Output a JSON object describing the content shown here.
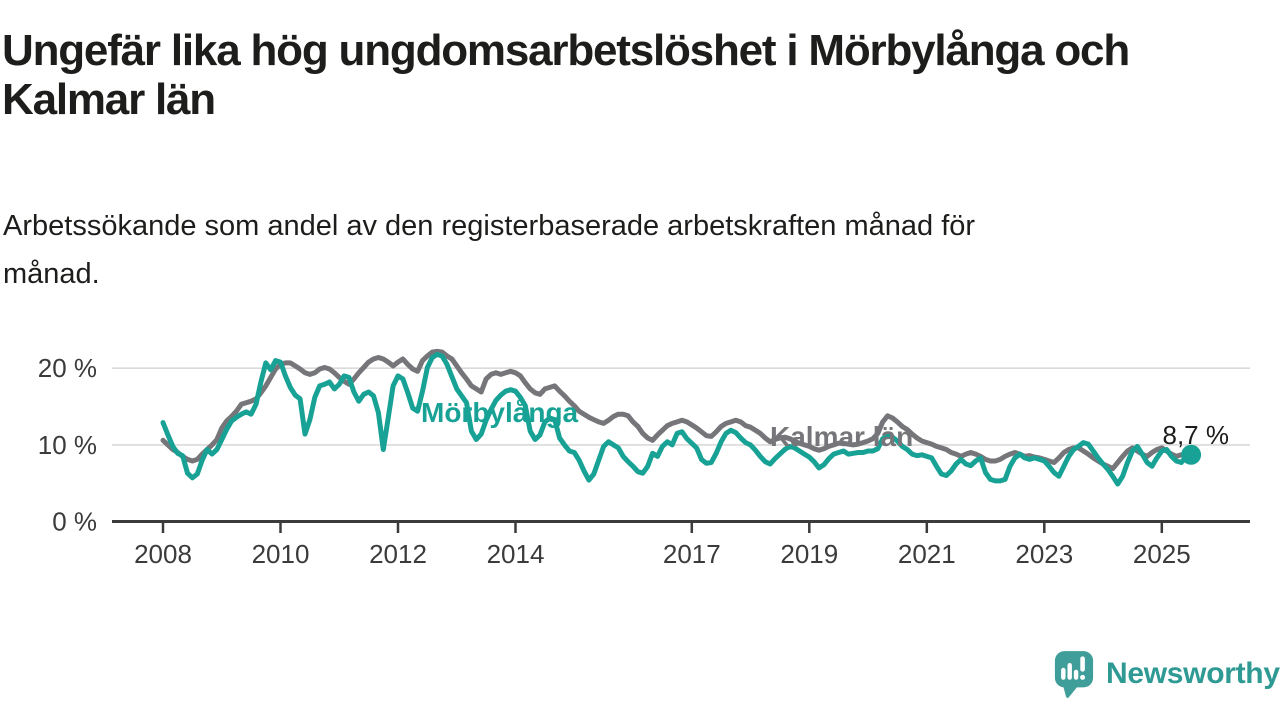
{
  "title_lines": [
    "Ungefär lika hög ungdomsarbetslöshet i Mörbylånga och",
    "Kalmar län"
  ],
  "subtitle_lines": [
    "Arbetssökande som andel av den registerbaserade arbetskraften månad för",
    "månad."
  ],
  "branding": {
    "name": "Newsworthy",
    "logo_icon": "speech-bubble-bar-chart",
    "brand_color": "#2f9a94",
    "icon_color": "#3f9e99"
  },
  "colors": {
    "morbylanga": "#18a296",
    "kalmar": "#76767a",
    "axis": "#3b3b3b",
    "grid": "#dadada",
    "text": "#1d1d1b"
  },
  "chart_data": {
    "type": "line",
    "title": "Ungefär lika hög ungdomsarbetslöshet i Mörbylånga och Kalmar län",
    "subtitle": "Arbetssökande som andel av den registerbaserade arbetskraften månad för månad.",
    "x_start_year": 2008,
    "x_step_months": 1,
    "x_end_label_year": 2025.5,
    "xticks": [
      2008,
      2010,
      2012,
      2014,
      2017,
      2019,
      2021,
      2023,
      2025
    ],
    "yticks": [
      {
        "value": 0,
        "label": "0 %"
      },
      {
        "value": 10,
        "label": "10 %"
      },
      {
        "value": 20,
        "label": "20 %"
      }
    ],
    "ylim": [
      0,
      23
    ],
    "grid": "horizontal",
    "legend_position": "inline-labels",
    "end_label": "8,7 %",
    "end_value": 8.7,
    "series": [
      {
        "name": "Kalmar län",
        "color": "#76767a",
        "end_dot": false,
        "values": [
          10.6,
          10.0,
          9.4,
          9.0,
          8.5,
          8.1,
          7.9,
          8.1,
          8.8,
          9.4,
          10.0,
          10.7,
          12.2,
          13.1,
          13.7,
          14.4,
          15.3,
          15.5,
          15.7,
          16.0,
          16.8,
          17.7,
          18.8,
          19.9,
          20.5,
          20.7,
          20.7,
          20.3,
          19.9,
          19.4,
          19.2,
          19.4,
          19.9,
          20.1,
          19.9,
          19.4,
          18.8,
          18.3,
          17.9,
          18.6,
          19.4,
          20.1,
          20.8,
          21.2,
          21.4,
          21.2,
          20.8,
          20.3,
          20.8,
          21.2,
          20.5,
          19.9,
          19.6,
          21.0,
          21.6,
          22.1,
          22.2,
          22.1,
          21.6,
          21.2,
          20.3,
          19.4,
          18.6,
          17.7,
          17.3,
          16.9,
          18.6,
          19.2,
          19.4,
          19.2,
          19.4,
          19.6,
          19.4,
          19.0,
          18.1,
          17.3,
          16.8,
          16.6,
          17.3,
          17.5,
          17.7,
          17.0,
          16.4,
          15.7,
          15.1,
          14.4,
          14.0,
          13.6,
          13.3,
          13.0,
          12.8,
          13.2,
          13.7,
          14.0,
          14.0,
          13.8,
          13.0,
          12.4,
          11.5,
          10.9,
          10.6,
          11.3,
          11.9,
          12.5,
          12.8,
          13.0,
          13.2,
          13.0,
          12.6,
          12.2,
          11.7,
          11.2,
          11.1,
          11.7,
          12.4,
          12.8,
          13.0,
          13.2,
          13.0,
          12.5,
          12.3,
          11.9,
          11.5,
          10.9,
          10.4,
          10.7,
          10.9,
          11.0,
          10.8,
          10.5,
          10.2,
          10.0,
          9.8,
          9.5,
          9.3,
          9.5,
          9.8,
          10.0,
          10.2,
          10.2,
          10.1,
          10.0,
          10.1,
          10.3,
          10.5,
          10.8,
          11.5,
          13.0,
          13.8,
          13.5,
          13.0,
          12.4,
          12.0,
          11.4,
          10.9,
          10.5,
          10.3,
          10.1,
          9.8,
          9.6,
          9.4,
          9.0,
          8.8,
          8.5,
          8.8,
          9.0,
          8.8,
          8.5,
          8.1,
          7.9,
          7.9,
          8.1,
          8.5,
          8.8,
          9.0,
          8.8,
          8.5,
          8.6,
          8.4,
          8.3,
          8.1,
          7.9,
          7.7,
          8.3,
          9.0,
          9.4,
          9.6,
          9.6,
          9.2,
          8.8,
          8.3,
          7.9,
          7.5,
          7.2,
          6.9,
          7.7,
          8.5,
          9.2,
          9.6,
          9.2,
          8.8,
          8.5,
          9.0,
          9.4,
          9.6,
          9.2,
          8.8,
          8.5,
          8.7,
          8.8,
          8.7
        ]
      },
      {
        "name": "Mörbylånga",
        "color": "#18a296",
        "end_dot": true,
        "values": [
          12.9,
          11.3,
          9.8,
          8.9,
          8.6,
          6.3,
          5.7,
          6.2,
          8.0,
          9.4,
          8.8,
          9.4,
          10.7,
          12.0,
          13.1,
          13.6,
          14.0,
          14.3,
          14.0,
          15.3,
          18.2,
          20.7,
          19.8,
          21.0,
          20.8,
          19.0,
          17.5,
          16.5,
          16.0,
          11.4,
          13.3,
          16.2,
          17.7,
          17.9,
          18.2,
          17.3,
          17.9,
          19.0,
          18.8,
          16.9,
          15.7,
          16.6,
          16.9,
          16.4,
          14.2,
          9.4,
          13.5,
          17.7,
          19.0,
          18.6,
          16.8,
          14.8,
          14.4,
          17.0,
          20.1,
          21.4,
          21.8,
          21.6,
          20.5,
          18.9,
          17.3,
          16.4,
          15.5,
          11.8,
          10.7,
          11.4,
          13.2,
          14.6,
          15.8,
          16.5,
          17.0,
          17.2,
          17.0,
          16.2,
          15.1,
          11.8,
          10.7,
          11.3,
          13.0,
          13.5,
          13.3,
          10.9,
          10.0,
          9.2,
          9.0,
          8.0,
          6.6,
          5.4,
          6.2,
          8.0,
          9.8,
          10.4,
          10.0,
          9.6,
          8.5,
          7.8,
          7.2,
          6.5,
          6.3,
          7.2,
          8.9,
          8.5,
          9.8,
          10.4,
          10.0,
          11.5,
          11.7,
          10.8,
          10.2,
          9.6,
          8.1,
          7.6,
          7.7,
          8.9,
          10.4,
          11.5,
          11.9,
          11.6,
          10.9,
          10.3,
          10.0,
          9.3,
          8.5,
          7.8,
          7.5,
          8.2,
          8.8,
          9.4,
          9.8,
          9.6,
          9.2,
          8.8,
          8.4,
          7.8,
          7.0,
          7.4,
          8.2,
          8.8,
          9.0,
          9.2,
          8.8,
          8.9,
          9.0,
          9.0,
          9.2,
          9.2,
          9.5,
          10.8,
          11.2,
          11.0,
          10.5,
          9.8,
          9.4,
          8.8,
          8.6,
          8.7,
          8.5,
          8.3,
          7.2,
          6.2,
          6.0,
          6.6,
          7.5,
          8.1,
          7.5,
          7.3,
          7.9,
          8.3,
          6.4,
          5.5,
          5.3,
          5.3,
          5.5,
          7.2,
          8.3,
          8.8,
          8.3,
          8.1,
          8.3,
          8.1,
          7.9,
          7.2,
          6.4,
          5.9,
          7.2,
          8.5,
          9.4,
          9.8,
          10.3,
          10.1,
          9.2,
          8.3,
          7.5,
          6.8,
          5.9,
          4.9,
          5.9,
          7.7,
          9.2,
          9.8,
          8.8,
          7.7,
          7.2,
          8.3,
          9.2,
          9.4,
          8.5,
          7.9,
          7.7,
          8.5,
          8.7
        ]
      }
    ]
  }
}
